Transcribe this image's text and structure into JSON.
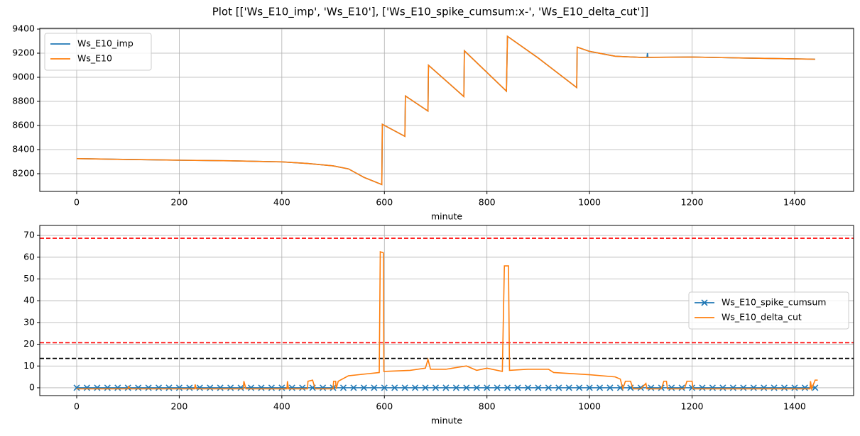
{
  "title": "Plot [['Ws_E10_imp', 'Ws_E10'], ['Ws_E10_spike_cumsum:x-', 'Ws_E10_delta_cut']]",
  "chart_data": [
    {
      "type": "line",
      "xlabel": "minute",
      "xlim": [
        -72,
        1515
      ],
      "ylim": [
        8053,
        9406
      ],
      "xticks": [
        0,
        200,
        400,
        600,
        800,
        1000,
        1200,
        1400
      ],
      "yticks": [
        8200,
        8400,
        8600,
        8800,
        9000,
        9200,
        9400
      ],
      "grid": true,
      "legend": "upper left",
      "series": [
        {
          "name": "Ws_E10_imp",
          "color": "#1f77b4",
          "x": [
            0,
            100,
            200,
            300,
            400,
            450,
            500,
            530,
            560,
            595,
            596,
            640,
            641,
            685,
            686,
            755,
            756,
            838,
            840,
            900,
            975,
            976,
            1000,
            1050,
            1100,
            1112,
            1113,
            1114,
            1200,
            1300,
            1440
          ],
          "values": [
            8325,
            8318,
            8312,
            8307,
            8298,
            8285,
            8265,
            8240,
            8170,
            8110,
            8610,
            8510,
            8845,
            8720,
            9100,
            8840,
            9220,
            8885,
            9340,
            9160,
            8915,
            9250,
            9215,
            9175,
            9165,
            9165,
            9200,
            9165,
            9168,
            9160,
            9150
          ]
        },
        {
          "name": "Ws_E10",
          "color": "#ff7f0e",
          "x": [
            0,
            100,
            200,
            300,
            400,
            450,
            500,
            530,
            560,
            595,
            596,
            640,
            641,
            685,
            686,
            755,
            756,
            838,
            840,
            900,
            975,
            976,
            1000,
            1050,
            1100,
            1200,
            1300,
            1440
          ],
          "values": [
            8325,
            8318,
            8312,
            8307,
            8298,
            8285,
            8265,
            8240,
            8170,
            8110,
            8610,
            8510,
            8845,
            8720,
            9100,
            8840,
            9220,
            8885,
            9340,
            9160,
            8915,
            9250,
            9215,
            9175,
            9165,
            9168,
            9160,
            9150
          ]
        }
      ]
    },
    {
      "type": "line",
      "xlabel": "minute",
      "xlim": [
        -72,
        1515
      ],
      "ylim": [
        -3.6,
        74.6
      ],
      "xticks": [
        0,
        200,
        400,
        600,
        800,
        1000,
        1200,
        1400
      ],
      "yticks": [
        0,
        10,
        20,
        30,
        40,
        50,
        60,
        70
      ],
      "grid": true,
      "legend": "center right",
      "hlines": [
        {
          "value": 68.7,
          "color": "#ff0000"
        },
        {
          "value": 20.7,
          "color": "#ff0000"
        },
        {
          "value": 13.5,
          "color": "#000000"
        }
      ],
      "series": [
        {
          "name": "Ws_E10_spike_cumsum",
          "color": "#1f77b4",
          "marker": "x",
          "x": [
            0,
            20,
            40,
            60,
            80,
            100,
            120,
            140,
            160,
            180,
            200,
            220,
            240,
            260,
            280,
            300,
            320,
            340,
            360,
            380,
            400,
            420,
            440,
            460,
            480,
            500,
            520,
            540,
            560,
            580,
            600,
            620,
            640,
            660,
            680,
            700,
            720,
            740,
            760,
            780,
            800,
            820,
            840,
            860,
            880,
            900,
            920,
            940,
            960,
            980,
            1000,
            1020,
            1040,
            1060,
            1080,
            1100,
            1120,
            1140,
            1160,
            1180,
            1200,
            1220,
            1240,
            1260,
            1280,
            1300,
            1320,
            1340,
            1360,
            1380,
            1400,
            1420,
            1440
          ],
          "values": [
            0,
            0,
            0,
            0,
            0,
            0,
            0,
            0,
            0,
            0,
            0,
            0,
            0,
            0,
            0,
            0,
            0,
            0,
            0,
            0,
            0,
            0,
            0,
            0,
            0,
            0,
            0,
            0,
            0,
            0,
            0,
            0,
            0,
            0,
            0,
            0,
            0,
            0,
            0,
            0,
            0,
            0,
            0,
            0,
            0,
            0,
            0,
            0,
            0,
            0,
            0,
            0,
            0,
            0,
            0,
            0,
            0,
            0,
            0,
            0,
            0,
            0,
            0,
            0,
            0,
            0,
            0,
            0,
            0,
            0,
            0,
            0,
            0
          ]
        },
        {
          "name": "Ws_E10_delta_cut",
          "color": "#ff7f0e",
          "x": [
            0,
            100,
            101,
            105,
            230,
            231,
            233,
            325,
            326,
            330,
            410,
            411,
            413,
            450,
            451,
            460,
            465,
            500,
            501,
            505,
            506,
            510,
            530,
            570,
            590,
            592,
            598,
            599,
            650,
            680,
            685,
            690,
            720,
            760,
            780,
            800,
            830,
            834,
            842,
            844,
            880,
            920,
            930,
            1000,
            1050,
            1060,
            1065,
            1070,
            1080,
            1085,
            1100,
            1110,
            1112,
            1140,
            1145,
            1150,
            1152,
            1185,
            1190,
            1200,
            1202,
            1430,
            1431,
            1433,
            1440,
            1445
          ],
          "values": [
            -0.5,
            -0.5,
            0.5,
            -0.5,
            -0.5,
            1.5,
            -0.5,
            -0.5,
            3,
            -0.5,
            -0.5,
            3,
            -0.5,
            -0.5,
            3,
            3.5,
            -0.5,
            -0.5,
            3,
            3,
            -0.5,
            3,
            5.5,
            6.5,
            7,
            62.5,
            62,
            7.5,
            8,
            9,
            13,
            8.5,
            8.5,
            10,
            8,
            9,
            7.5,
            56,
            56,
            8,
            8.5,
            8.5,
            7,
            6,
            5,
            4,
            -0.5,
            3,
            3,
            -0.5,
            -0.5,
            2,
            -0.5,
            -0.5,
            3,
            3,
            -0.5,
            -0.5,
            3,
            3,
            -0.5,
            -0.5,
            3,
            -0.5,
            3.5,
            3.5
          ]
        }
      ]
    }
  ]
}
